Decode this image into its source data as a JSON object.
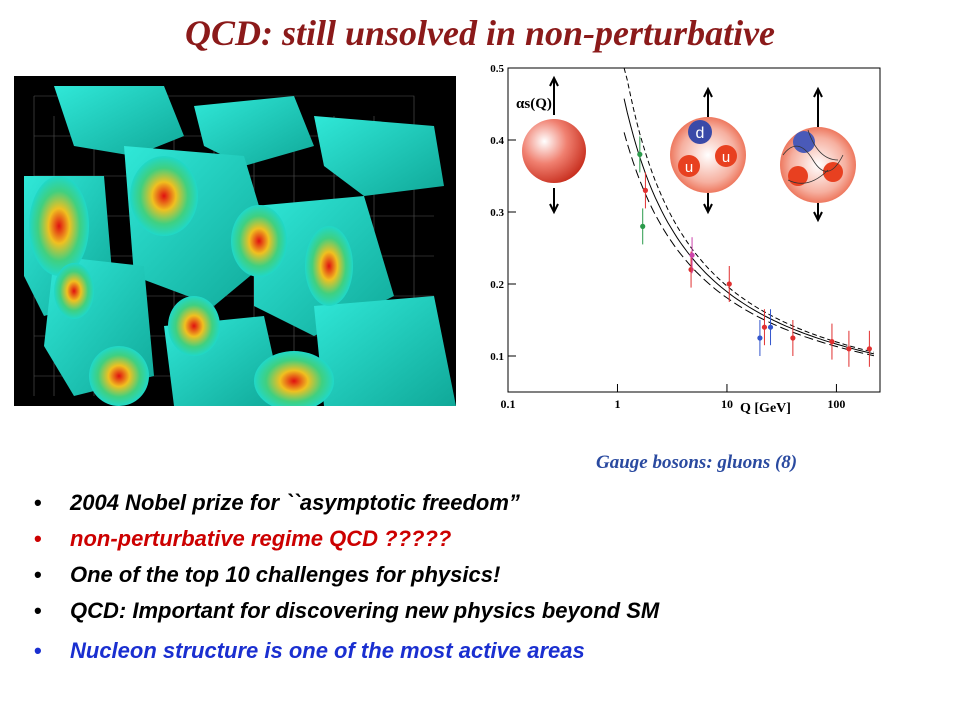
{
  "slide": {
    "title": "QCD: still unsolved in non-perturbative",
    "caption": "Gauge bosons: gluons (8)"
  },
  "bullets": [
    {
      "text": "2004 Nobel prize for ``asymptotic freedom”",
      "color": "#000000"
    },
    {
      "text": "non-perturbative regime QCD ?????",
      "color": "#cc0000"
    },
    {
      "text": "One of the top 10 challenges for physics!",
      "color": "#000000"
    },
    {
      "text": "QCD: Important for discovering new physics beyond SM",
      "color": "#000000"
    },
    {
      "text": "Nucleon structure is one of  the most active areas",
      "color": "#1a2fd0"
    }
  ],
  "chart_data": {
    "type": "scatter",
    "xlabel": "Q [GeV]",
    "ylabel": "αs(Q)",
    "xscale": "log",
    "xlim": [
      0.1,
      250
    ],
    "ylim": [
      0.05,
      0.5
    ],
    "x_ticks": [
      "0.1",
      "1",
      "10",
      "100"
    ],
    "y_ticks": [
      "0.1",
      "0.2",
      "0.3",
      "0.4",
      "0.5"
    ],
    "series": [
      {
        "color": "#2a9a4a",
        "points": [
          {
            "x": 1.6,
            "y": 0.38
          },
          {
            "x": 1.7,
            "y": 0.28
          }
        ]
      },
      {
        "color": "#e03030",
        "points": [
          {
            "x": 1.8,
            "y": 0.33
          },
          {
            "x": 4.7,
            "y": 0.22
          },
          {
            "x": 10.5,
            "y": 0.2
          },
          {
            "x": 22,
            "y": 0.14
          },
          {
            "x": 40,
            "y": 0.125
          },
          {
            "x": 91,
            "y": 0.12
          },
          {
            "x": 130,
            "y": 0.11
          },
          {
            "x": 200,
            "y": 0.11
          }
        ]
      },
      {
        "color": "#cc44aa",
        "points": [
          {
            "x": 4.8,
            "y": 0.24
          }
        ]
      },
      {
        "color": "#3355cc",
        "points": [
          {
            "x": 20,
            "y": 0.125
          },
          {
            "x": 25,
            "y": 0.14
          }
        ]
      }
    ],
    "inset_labels": [
      "d",
      "u",
      "u"
    ]
  }
}
